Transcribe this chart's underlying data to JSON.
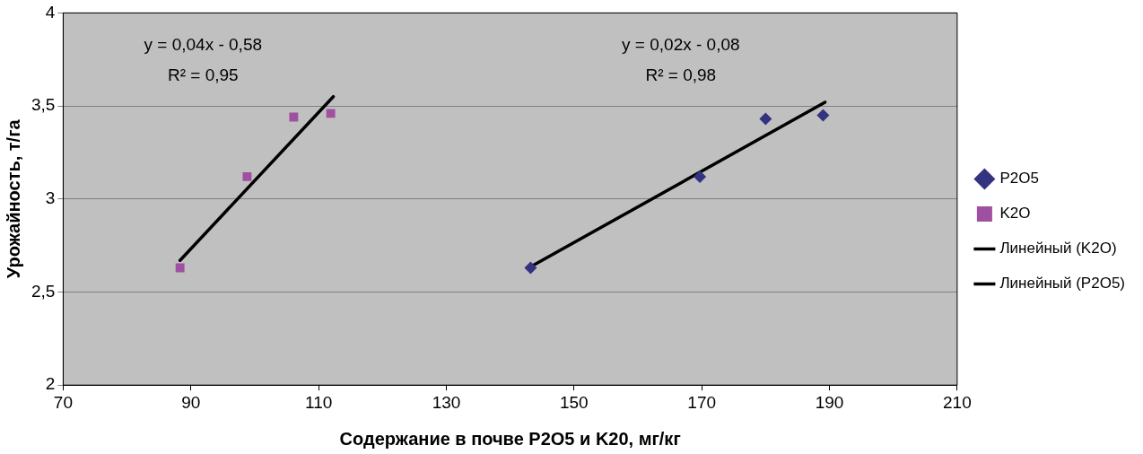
{
  "chart_data": {
    "type": "scatter",
    "xlabel": "Содержание в почве P2O5 и K20, мг/кг",
    "ylabel": "Урожайность, т/га",
    "xlim": [
      70,
      210
    ],
    "xticks": [
      70,
      90,
      110,
      130,
      150,
      170,
      190,
      210
    ],
    "ylim": [
      2,
      4
    ],
    "yticks": [
      {
        "value": 2,
        "label": "2"
      },
      {
        "value": 2.5,
        "label": "2,5"
      },
      {
        "value": 3,
        "label": "3"
      },
      {
        "value": 3.5,
        "label": "3,5"
      },
      {
        "value": 4,
        "label": "4"
      }
    ],
    "grid": "y",
    "legend": "right",
    "line_style": "solid",
    "series": [
      {
        "name": "P2O5",
        "color": "#333380",
        "marker": "diamond",
        "x": [
          143.2,
          169.7,
          180.0,
          189.0
        ],
        "values": [
          2.63,
          3.12,
          3.43,
          3.45
        ]
      },
      {
        "name": "K2O",
        "color": "#a050a0",
        "marker": "square",
        "x": [
          88.3,
          98.8,
          106.1,
          111.9
        ],
        "values": [
          2.63,
          3.12,
          3.44,
          3.46
        ]
      },
      {
        "name": "Линейный (K2O)",
        "type": "line",
        "color": "#000000",
        "marker": "none",
        "x": [
          88.3,
          112.3
        ],
        "values": [
          2.67,
          3.55
        ]
      },
      {
        "name": "Линейный (P2O5)",
        "type": "line",
        "color": "#000000",
        "marker": "none",
        "x": [
          142.9,
          189.3
        ],
        "values": [
          2.63,
          3.52
        ]
      }
    ],
    "annotations": [
      "y = 0,04x - 0,58",
      "R² = 0,95",
      "y = 0,02x - 0,08",
      "R² = 0,98"
    ]
  }
}
